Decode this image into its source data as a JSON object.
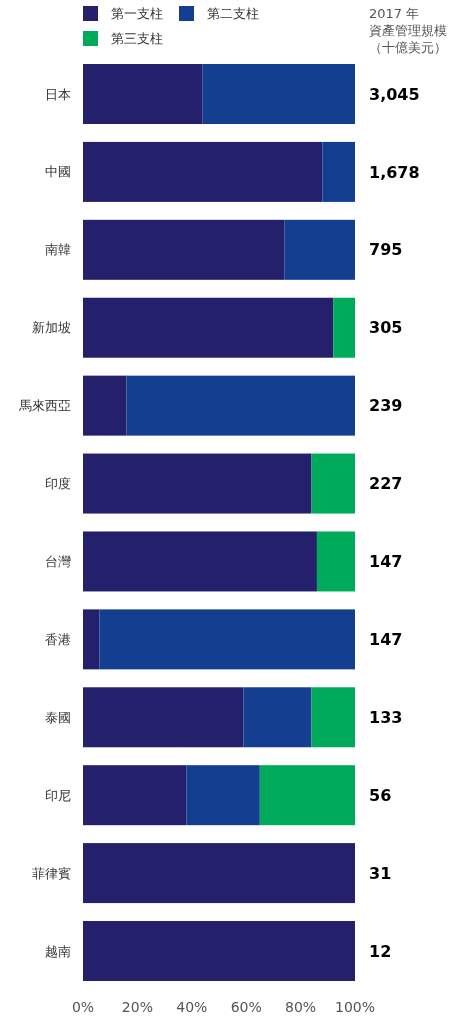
{
  "chart_data": {
    "type": "bar",
    "orientation": "horizontal",
    "stacked": true,
    "categories": [
      "日本",
      "中國",
      "南韓",
      "新加坡",
      "馬來西亞",
      "印度",
      "台灣",
      "香港",
      "泰國",
      "印尼",
      "菲律賓",
      "越南"
    ],
    "series": [
      {
        "name": "第一支柱",
        "color": "#24206b",
        "values": [
          44,
          88,
          74,
          92,
          16,
          84,
          86,
          6,
          59,
          38,
          100,
          100
        ]
      },
      {
        "name": "第二支柱",
        "color": "#143e8f",
        "values": [
          56,
          12,
          26,
          0,
          84,
          0,
          0,
          94,
          25,
          27,
          0,
          0
        ]
      },
      {
        "name": "第三支柱",
        "color": "#00aa5b",
        "values": [
          0,
          0,
          0,
          8,
          0,
          16,
          14,
          0,
          16,
          35,
          0,
          0
        ]
      }
    ],
    "xlim": [
      0,
      100
    ],
    "xticks": [
      {
        "value": 0,
        "label": "0%"
      },
      {
        "value": 20,
        "label": "20%"
      },
      {
        "value": 40,
        "label": "40%"
      },
      {
        "value": 60,
        "label": "60%"
      },
      {
        "value": 80,
        "label": "80%"
      },
      {
        "value": 100,
        "label": "100%"
      }
    ],
    "legend": "top left",
    "grid": false,
    "annotations": [
      "2017 年",
      "資產管理規模",
      "（十億美元）",
      "3,045",
      "1,678",
      "795",
      "305",
      "239",
      "227",
      "147",
      "147",
      "133",
      "56",
      "31",
      "12"
    ]
  }
}
